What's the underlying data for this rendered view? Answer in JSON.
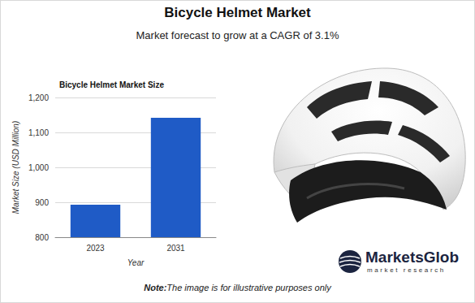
{
  "header": {
    "title": "Bicycle Helmet Market",
    "subtitle": "Market forecast to grow at a CAGR of 3.1%"
  },
  "chart_data": {
    "type": "bar",
    "title": "Bicycle Helmet Market Size",
    "x_label": "Year",
    "y_label": "Market Size (USD Million)",
    "categories": [
      "2023",
      "2031"
    ],
    "values": [
      893,
      1142
    ],
    "color": "#1f5bc6",
    "ylim": [
      800,
      1200
    ],
    "yticks": [
      800,
      900,
      {
        "value": 1000,
        "label": "1,000"
      },
      {
        "value": 1100,
        "label": "1,100"
      },
      {
        "value": 1200,
        "label": "1,200"
      }
    ],
    "grid": true
  },
  "logo": {
    "name": "MarketsGlob",
    "tagline": "market research"
  },
  "note": {
    "label": "Note:",
    "text": "The image is for illustrative purposes only"
  }
}
